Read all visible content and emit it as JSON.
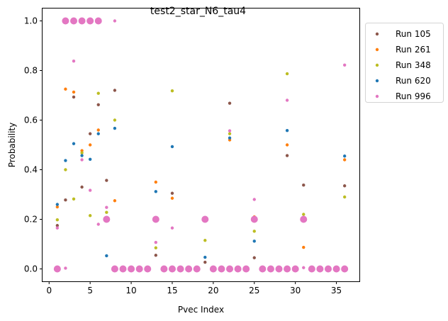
{
  "chart_data": {
    "type": "scatter",
    "title": "test2_star_N6_tau4",
    "xlabel": "Pvec Index",
    "ylabel": "Probability",
    "xlim": [
      -0.8,
      37.8
    ],
    "ylim": [
      -0.05,
      1.05
    ],
    "xticks": [
      "0",
      "5",
      "10",
      "15",
      "20",
      "25",
      "30",
      "35"
    ],
    "yticks": [
      "0.0",
      "0.2",
      "0.4",
      "0.6",
      "0.8",
      "1.0"
    ],
    "grid": false,
    "legend_position": "upper right, outside plot",
    "series": [
      {
        "name": "Run 105",
        "color": "#8c564b",
        "points": [
          [
            1,
            0.175
          ],
          [
            2,
            0.278
          ],
          [
            3,
            0.693
          ],
          [
            4,
            0.33
          ],
          [
            5,
            0.545
          ],
          [
            6,
            0.662
          ],
          [
            7,
            0.357
          ],
          [
            8,
            0.72
          ],
          [
            13,
            0.055
          ],
          [
            15,
            0.305
          ],
          [
            19,
            0.027
          ],
          [
            22,
            0.668
          ],
          [
            25,
            0.045
          ],
          [
            29,
            0.457
          ],
          [
            31,
            0.338
          ],
          [
            36,
            0.335
          ]
        ]
      },
      {
        "name": "Run 261",
        "color": "#ff7f0e",
        "points": [
          [
            1,
            0.25
          ],
          [
            2,
            0.725
          ],
          [
            3,
            0.713
          ],
          [
            4,
            0.477
          ],
          [
            5,
            0.5
          ],
          [
            6,
            0.56
          ],
          [
            8,
            0.275
          ],
          [
            13,
            0.35
          ],
          [
            15,
            0.285
          ],
          [
            22,
            0.52
          ],
          [
            25,
            0.21
          ],
          [
            29,
            0.5
          ],
          [
            31,
            0.087
          ],
          [
            36,
            0.44
          ]
        ]
      },
      {
        "name": "Run 348",
        "color": "#bcbd22",
        "points": [
          [
            1,
            0.198
          ],
          [
            2,
            0.4
          ],
          [
            3,
            0.282
          ],
          [
            4,
            0.468
          ],
          [
            5,
            0.215
          ],
          [
            6,
            0.708
          ],
          [
            7,
            0.228
          ],
          [
            8,
            0.6
          ],
          [
            13,
            0.085
          ],
          [
            15,
            0.718
          ],
          [
            19,
            0.115
          ],
          [
            22,
            0.545
          ],
          [
            25,
            0.152
          ],
          [
            29,
            0.787
          ],
          [
            31,
            0.22
          ],
          [
            36,
            0.29
          ]
        ]
      },
      {
        "name": "Run 620",
        "color": "#1f77b4",
        "points": [
          [
            1,
            0.26
          ],
          [
            2,
            0.437
          ],
          [
            3,
            0.505
          ],
          [
            4,
            0.457
          ],
          [
            5,
            0.442
          ],
          [
            6,
            0.545
          ],
          [
            7,
            0.053
          ],
          [
            8,
            0.567
          ],
          [
            13,
            0.312
          ],
          [
            15,
            0.493
          ],
          [
            19,
            0.047
          ],
          [
            22,
            0.528
          ],
          [
            25,
            0.112
          ],
          [
            29,
            0.558
          ],
          [
            36,
            0.455
          ]
        ]
      },
      {
        "name": "Run 996",
        "color": "#e377c2",
        "points": [
          [
            1,
            0.165
          ],
          [
            2,
            0.003
          ],
          [
            3,
            0.838
          ],
          [
            4,
            0.44
          ],
          [
            5,
            0.317
          ],
          [
            6,
            0.18
          ],
          [
            7,
            0.248
          ],
          [
            8,
            1.0
          ],
          [
            13,
            0.107
          ],
          [
            15,
            0.165
          ],
          [
            22,
            0.557
          ],
          [
            25,
            0.28
          ],
          [
            29,
            0.68
          ],
          [
            31,
            0.005
          ],
          [
            36,
            0.822
          ]
        ]
      }
    ],
    "overlap_markers": {
      "color": "#e377c2",
      "points": [
        [
          1,
          0.0
        ],
        [
          2,
          1.0
        ],
        [
          3,
          1.0
        ],
        [
          4,
          1.0
        ],
        [
          5,
          1.0
        ],
        [
          6,
          1.0
        ],
        [
          7,
          0.2
        ],
        [
          8,
          0.0
        ],
        [
          9,
          0.0
        ],
        [
          10,
          0.0
        ],
        [
          11,
          0.0
        ],
        [
          12,
          0.0
        ],
        [
          13,
          0.2
        ],
        [
          14,
          0.0
        ],
        [
          15,
          0.0
        ],
        [
          16,
          0.0
        ],
        [
          17,
          0.0
        ],
        [
          18,
          0.0
        ],
        [
          19,
          0.2
        ],
        [
          20,
          0.0
        ],
        [
          21,
          0.0
        ],
        [
          22,
          0.0
        ],
        [
          23,
          0.0
        ],
        [
          24,
          0.0
        ],
        [
          25,
          0.2
        ],
        [
          26,
          0.0
        ],
        [
          27,
          0.0
        ],
        [
          28,
          0.0
        ],
        [
          29,
          0.0
        ],
        [
          30,
          0.0
        ],
        [
          31,
          0.2
        ],
        [
          32,
          0.0
        ],
        [
          33,
          0.0
        ],
        [
          34,
          0.0
        ],
        [
          35,
          0.0
        ],
        [
          36,
          0.0
        ]
      ]
    }
  }
}
